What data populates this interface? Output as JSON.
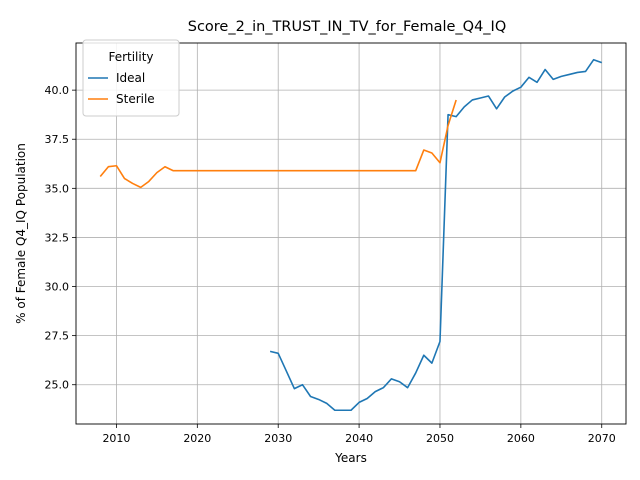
{
  "chart_data": {
    "type": "line",
    "title": "Score_2_in_TRUST_IN_TV_for_Female_Q4_IQ",
    "xlabel": "Years",
    "ylabel": "% of Female Q4_IQ Population",
    "xlim": [
      2005,
      2073
    ],
    "ylim": [
      23.0,
      42.4
    ],
    "xticks": [
      2010,
      2020,
      2030,
      2040,
      2050,
      2060,
      2070
    ],
    "yticks": [
      25.0,
      27.5,
      30.0,
      32.5,
      35.0,
      37.5,
      40.0
    ],
    "grid": true,
    "legend": {
      "title": "Fertility",
      "placement": "top-left"
    },
    "series": [
      {
        "name": "Ideal",
        "color": "#1f77b4",
        "x": [
          2029,
          2030,
          2031,
          2032,
          2033,
          2034,
          2035,
          2036,
          2037,
          2038,
          2039,
          2040,
          2041,
          2042,
          2043,
          2044,
          2045,
          2046,
          2047,
          2048,
          2049,
          2050,
          2051,
          2052,
          2053,
          2054,
          2055,
          2056,
          2057,
          2058,
          2059,
          2060,
          2061,
          2062,
          2063,
          2064,
          2065,
          2066,
          2067,
          2068,
          2069,
          2070
        ],
        "y": [
          26.7,
          26.6,
          25.7,
          24.8,
          25.0,
          24.4,
          24.25,
          24.05,
          23.7,
          23.7,
          23.7,
          24.1,
          24.3,
          24.65,
          24.85,
          25.3,
          25.15,
          24.85,
          25.6,
          26.5,
          26.1,
          27.2,
          38.75,
          38.65,
          39.15,
          39.5,
          39.6,
          39.7,
          39.05,
          39.65,
          39.95,
          40.15,
          40.65,
          40.4,
          41.05,
          40.55,
          40.7,
          40.8,
          40.9,
          40.95,
          41.55,
          41.4
        ]
      },
      {
        "name": "Sterile",
        "color": "#ff7f0e",
        "x": [
          2008,
          2009,
          2010,
          2011,
          2012,
          2013,
          2014,
          2015,
          2016,
          2017,
          2018,
          2019,
          2020,
          2021,
          2022,
          2023,
          2024,
          2025,
          2026,
          2027,
          2028,
          2029,
          2030,
          2031,
          2032,
          2033,
          2034,
          2035,
          2036,
          2037,
          2038,
          2039,
          2040,
          2041,
          2042,
          2043,
          2044,
          2045,
          2046,
          2047,
          2048,
          2049,
          2050,
          2051,
          2052
        ],
        "y": [
          35.6,
          36.1,
          36.15,
          35.5,
          35.25,
          35.05,
          35.35,
          35.8,
          36.1,
          35.9,
          35.9,
          35.9,
          35.9,
          35.9,
          35.9,
          35.9,
          35.9,
          35.9,
          35.9,
          35.9,
          35.9,
          35.9,
          35.9,
          35.9,
          35.9,
          35.9,
          35.9,
          35.9,
          35.9,
          35.9,
          35.9,
          35.9,
          35.9,
          35.9,
          35.9,
          35.9,
          35.9,
          35.9,
          35.9,
          35.9,
          36.95,
          36.8,
          36.3,
          38.2,
          39.5
        ]
      }
    ]
  }
}
